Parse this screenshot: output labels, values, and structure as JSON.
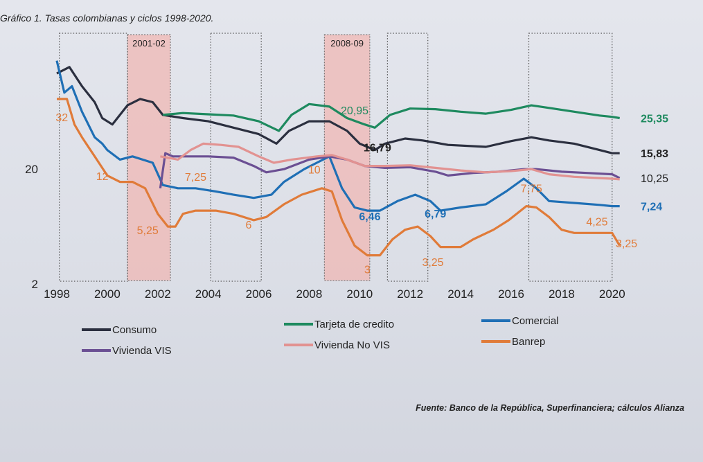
{
  "chart_data": {
    "type": "line",
    "title": "Gráfico 1. Tasas colombianas y ciclos 1998-2020.",
    "xlabel": "",
    "ylabel": "",
    "x_ticks": [
      "1998",
      "2000",
      "2002",
      "2004",
      "2006",
      "2008",
      "2010",
      "2012",
      "2014",
      "2016",
      "2018",
      "2020"
    ],
    "y_ticks": [
      "20",
      "2"
    ],
    "xlim": [
      1998,
      2020.5
    ],
    "ylim": [
      2,
      40
    ],
    "shaded_periods": [
      {
        "label": "2001-02",
        "from": 2000.8,
        "to": 2002.5
      },
      {
        "label": "2008-09",
        "from": 2008.6,
        "to": 2010.4
      }
    ],
    "cycle_boxes": [
      {
        "from": 1998.1,
        "to": 2000.8
      },
      {
        "from": 2004.1,
        "to": 2006.1
      },
      {
        "from": 2011.1,
        "to": 2012.7
      },
      {
        "from": 2016.7,
        "to": 2020.0
      }
    ],
    "legend": [
      "Consumo",
      "Tarjeta de credito",
      "Comercial",
      "Vivienda VIS",
      "Vivienda No VIS",
      "Banrep"
    ],
    "series": [
      {
        "name": "Consumo",
        "color": "#2b2f3f",
        "points": [
          [
            1998,
            35
          ],
          [
            1998.5,
            36
          ],
          [
            1999,
            33
          ],
          [
            1999.5,
            30.5
          ],
          [
            1999.8,
            28
          ],
          [
            2000.2,
            27
          ],
          [
            2000.8,
            30
          ],
          [
            2001.3,
            31
          ],
          [
            2001.8,
            30.5
          ],
          [
            2002.2,
            28.5
          ],
          [
            2003,
            28
          ],
          [
            2004,
            27.5
          ],
          [
            2005,
            26.5
          ],
          [
            2006,
            25.5
          ],
          [
            2006.7,
            24
          ],
          [
            2007.2,
            26
          ],
          [
            2008,
            27.5
          ],
          [
            2008.8,
            27.5
          ],
          [
            2009.5,
            26
          ],
          [
            2010,
            24
          ],
          [
            2010.6,
            23
          ],
          [
            2011,
            24
          ],
          [
            2011.8,
            24.8
          ],
          [
            2012.5,
            24.5
          ],
          [
            2013.5,
            23.8
          ],
          [
            2015,
            23.5
          ],
          [
            2016,
            24.4
          ],
          [
            2016.8,
            25
          ],
          [
            2017.5,
            24.5
          ],
          [
            2018.5,
            24
          ],
          [
            2019.5,
            23
          ],
          [
            2020,
            22.5
          ],
          [
            2020.3,
            22.5
          ]
        ],
        "end_label": "15,83"
      },
      {
        "name": "Tarjeta de credito",
        "color": "#1e8a5f",
        "points": [
          [
            2002.2,
            28.5
          ],
          [
            2003,
            28.8
          ],
          [
            2004,
            28.6
          ],
          [
            2005,
            28.4
          ],
          [
            2006,
            27.5
          ],
          [
            2006.8,
            26
          ],
          [
            2007.3,
            28.5
          ],
          [
            2008,
            30.2
          ],
          [
            2008.8,
            29.8
          ],
          [
            2009.5,
            28
          ],
          [
            2010.2,
            27
          ],
          [
            2010.6,
            26.5
          ],
          [
            2011.2,
            28.5
          ],
          [
            2012,
            29.5
          ],
          [
            2013,
            29.4
          ],
          [
            2014,
            29
          ],
          [
            2015,
            28.7
          ],
          [
            2016,
            29.3
          ],
          [
            2016.8,
            30
          ],
          [
            2017.5,
            29.6
          ],
          [
            2018.5,
            29
          ],
          [
            2019.5,
            28.4
          ],
          [
            2020,
            28.2
          ],
          [
            2020.3,
            28
          ]
        ],
        "end_label": "25,35"
      },
      {
        "name": "Comercial",
        "color": "#1f6fb5",
        "points": [
          [
            1998,
            37
          ],
          [
            1998.3,
            32
          ],
          [
            1998.6,
            33
          ],
          [
            1999,
            29
          ],
          [
            1999.5,
            25
          ],
          [
            1999.8,
            24
          ],
          [
            2000,
            23
          ],
          [
            2000.5,
            21.5
          ],
          [
            2001,
            22
          ],
          [
            2001.8,
            21
          ],
          [
            2002.2,
            17.5
          ],
          [
            2002.8,
            17
          ],
          [
            2003.5,
            17
          ],
          [
            2004.3,
            16.5
          ],
          [
            2005,
            16
          ],
          [
            2005.8,
            15.5
          ],
          [
            2006.5,
            16
          ],
          [
            2007,
            18
          ],
          [
            2007.8,
            20
          ],
          [
            2008.3,
            21
          ],
          [
            2008.8,
            22
          ],
          [
            2009.3,
            17
          ],
          [
            2009.8,
            14
          ],
          [
            2010.3,
            13.5
          ],
          [
            2010.8,
            13.5
          ],
          [
            2011.5,
            15
          ],
          [
            2012.2,
            16
          ],
          [
            2012.8,
            15
          ],
          [
            2013.2,
            13.5
          ],
          [
            2014,
            14
          ],
          [
            2015,
            14.5
          ],
          [
            2015.8,
            16.5
          ],
          [
            2016.5,
            18.5
          ],
          [
            2017,
            17
          ],
          [
            2017.5,
            15
          ],
          [
            2018.5,
            14.7
          ],
          [
            2019.5,
            14.4
          ],
          [
            2020,
            14.2
          ],
          [
            2020.3,
            14.2
          ]
        ],
        "end_label": "7,24"
      },
      {
        "name": "Vivienda VIS",
        "color": "#6b4f93",
        "points": [
          [
            2002.1,
            17
          ],
          [
            2002.3,
            22.5
          ],
          [
            2002.6,
            22
          ],
          [
            2003,
            22
          ],
          [
            2004,
            22
          ],
          [
            2005,
            21.8
          ],
          [
            2005.8,
            20.5
          ],
          [
            2006.3,
            19.5
          ],
          [
            2007,
            20
          ],
          [
            2008,
            21.5
          ],
          [
            2008.8,
            22
          ],
          [
            2009.5,
            21.5
          ],
          [
            2010.2,
            20.5
          ],
          [
            2011,
            20.2
          ],
          [
            2012,
            20.3
          ],
          [
            2013,
            19.6
          ],
          [
            2013.5,
            19
          ],
          [
            2014.5,
            19.4
          ],
          [
            2015.5,
            19.6
          ],
          [
            2016.5,
            20
          ],
          [
            2017,
            20
          ],
          [
            2018,
            19.6
          ],
          [
            2019,
            19.4
          ],
          [
            2020,
            19.2
          ],
          [
            2020.3,
            18.6
          ]
        ],
        "end_label": "10,25"
      },
      {
        "name": "Vivienda No VIS",
        "color": "#e29291",
        "points": [
          [
            2002.1,
            22
          ],
          [
            2002.8,
            21.5
          ],
          [
            2003.3,
            23
          ],
          [
            2003.8,
            24
          ],
          [
            2004.5,
            23.8
          ],
          [
            2005.2,
            23.5
          ],
          [
            2006,
            22
          ],
          [
            2006.6,
            21
          ],
          [
            2007.3,
            21.5
          ],
          [
            2008.3,
            22
          ],
          [
            2008.9,
            22.2
          ],
          [
            2009.5,
            21.5
          ],
          [
            2010.2,
            20.5
          ],
          [
            2011,
            20.5
          ],
          [
            2012,
            20.6
          ],
          [
            2013,
            20.2
          ],
          [
            2014,
            19.8
          ],
          [
            2015,
            19.5
          ],
          [
            2016,
            19.7
          ],
          [
            2016.8,
            20
          ],
          [
            2017.5,
            19.2
          ],
          [
            2018.5,
            18.8
          ],
          [
            2019.5,
            18.6
          ],
          [
            2020,
            18.5
          ],
          [
            2020.3,
            18.4
          ]
        ],
        "end_label": ""
      },
      {
        "name": "Banrep",
        "color": "#e07b39",
        "points": [
          [
            1998,
            31
          ],
          [
            1998.4,
            31
          ],
          [
            1998.7,
            27
          ],
          [
            1999,
            25
          ],
          [
            1999.5,
            22
          ],
          [
            2000,
            19
          ],
          [
            2000.5,
            18
          ],
          [
            2001,
            18
          ],
          [
            2001.5,
            17
          ],
          [
            2002,
            13
          ],
          [
            2002.4,
            11
          ],
          [
            2002.7,
            11
          ],
          [
            2003,
            13
          ],
          [
            2003.5,
            13.5
          ],
          [
            2004.3,
            13.5
          ],
          [
            2005,
            13
          ],
          [
            2005.8,
            12
          ],
          [
            2006.3,
            12.5
          ],
          [
            2007,
            14.5
          ],
          [
            2007.7,
            16
          ],
          [
            2008.5,
            17
          ],
          [
            2008.9,
            16.5
          ],
          [
            2009.3,
            12
          ],
          [
            2009.8,
            8
          ],
          [
            2010.3,
            6.5
          ],
          [
            2010.8,
            6.5
          ],
          [
            2011.3,
            9
          ],
          [
            2011.8,
            10.5
          ],
          [
            2012.3,
            11
          ],
          [
            2012.8,
            9.5
          ],
          [
            2013.2,
            7.8
          ],
          [
            2014,
            7.8
          ],
          [
            2014.5,
            9
          ],
          [
            2015.3,
            10.5
          ],
          [
            2015.9,
            12
          ],
          [
            2016.6,
            14.2
          ],
          [
            2017,
            14
          ],
          [
            2017.5,
            12.5
          ],
          [
            2018,
            10.5
          ],
          [
            2018.5,
            10
          ],
          [
            2019.5,
            10
          ],
          [
            2020,
            10
          ],
          [
            2020.3,
            8
          ]
        ],
        "end_label": "3,25"
      }
    ],
    "annotations": [
      {
        "text": "32",
        "x": 1998.2,
        "y": 27.5,
        "color": "#e07b39",
        "bold": false
      },
      {
        "text": "12",
        "x": 1999.8,
        "y": 18.3,
        "color": "#e07b39",
        "bold": false
      },
      {
        "text": "5,25",
        "x": 2001.6,
        "y": 9.8,
        "color": "#e07b39",
        "bold": false
      },
      {
        "text": "7,25",
        "x": 2003.5,
        "y": 18.2,
        "color": "#e07b39",
        "bold": false
      },
      {
        "text": "6",
        "x": 2005.6,
        "y": 10.7,
        "color": "#e07b39",
        "bold": false
      },
      {
        "text": "10",
        "x": 2008.2,
        "y": 19.3,
        "color": "#e07b39",
        "bold": false
      },
      {
        "text": "3",
        "x": 2010.3,
        "y": 3.7,
        "color": "#e07b39",
        "bold": false
      },
      {
        "text": "3,25",
        "x": 2012.9,
        "y": 4.8,
        "color": "#e07b39",
        "bold": false
      },
      {
        "text": "7,75",
        "x": 2016.8,
        "y": 16.4,
        "color": "#e07b39",
        "bold": false
      },
      {
        "text": "4,25",
        "x": 2019.4,
        "y": 11.2,
        "color": "#e07b39",
        "bold": false
      },
      {
        "text": "20,95",
        "x": 2009.8,
        "y": 28.6,
        "color": "#1e8a5f",
        "bold": false
      },
      {
        "text": "16,79",
        "x": 2010.7,
        "y": 22.8,
        "color": "#222222",
        "bold": true
      },
      {
        "text": "6,46",
        "x": 2010.4,
        "y": 12.0,
        "color": "#1f6fb5",
        "bold": true
      },
      {
        "text": "6,79",
        "x": 2013.0,
        "y": 12.4,
        "color": "#1f6fb5",
        "bold": true
      }
    ]
  },
  "source_note": "Fuente: Banco de la República, Superfinanciera; cálculos Alianza"
}
